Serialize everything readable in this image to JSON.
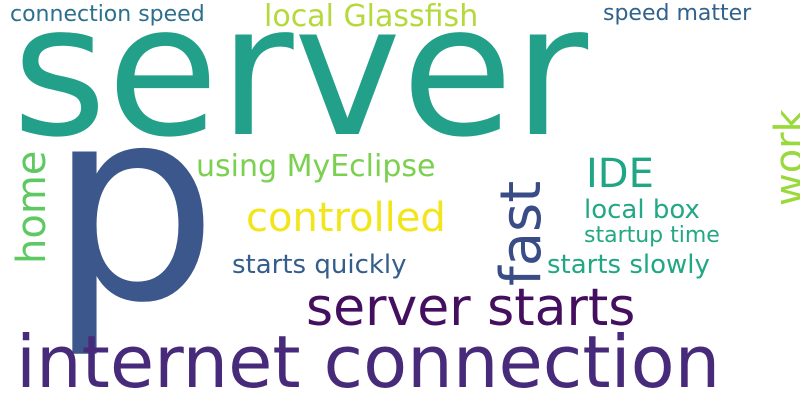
{
  "words": [
    {
      "text": "server",
      "color": "#23a08a"
    },
    {
      "text": "p",
      "color": "#3b578b"
    },
    {
      "text": "internet connection",
      "color": "#472a7a"
    },
    {
      "text": "server starts",
      "color": "#440f5e"
    },
    {
      "text": "local Glassfish",
      "color": "#b5d93b"
    },
    {
      "text": "connection speed",
      "color": "#2c6f8e"
    },
    {
      "text": "speed matter",
      "color": "#31618d"
    },
    {
      "text": "using MyEclipse",
      "color": "#7bd050"
    },
    {
      "text": "IDE",
      "color": "#20a685"
    },
    {
      "text": "controlled",
      "color": "#f2e51c"
    },
    {
      "text": "local box",
      "color": "#22a884"
    },
    {
      "text": "startup time",
      "color": "#23a883"
    },
    {
      "text": "starts quickly",
      "color": "#355d8c"
    },
    {
      "text": "starts slowly",
      "color": "#22a785"
    },
    {
      "text": "fast",
      "color": "#3a4c86"
    },
    {
      "text": "home",
      "color": "#5ec962"
    },
    {
      "text": "work",
      "color": "#9ad93c"
    }
  ]
}
